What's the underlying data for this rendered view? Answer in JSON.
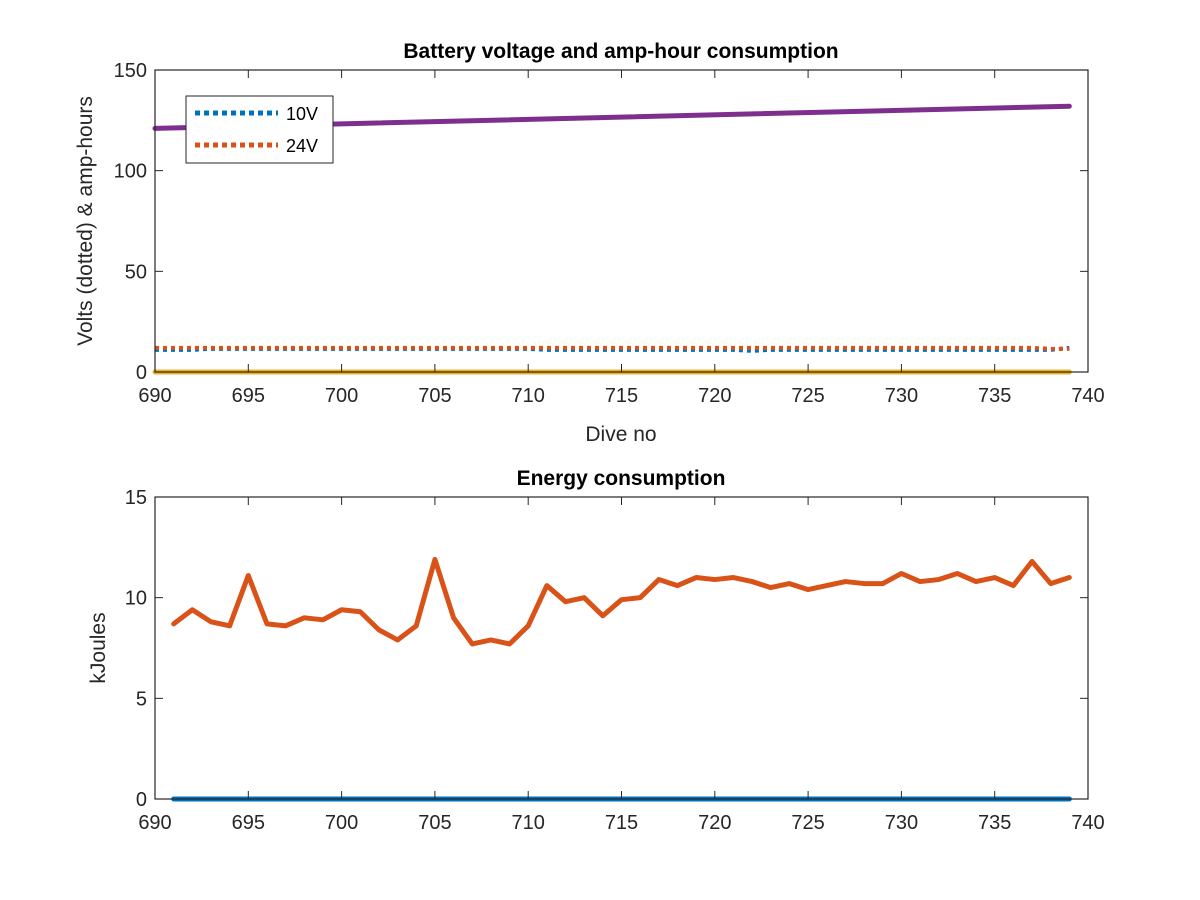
{
  "chart_data": [
    {
      "type": "line",
      "title": "Battery voltage and amp-hour consumption",
      "xlabel": "Dive no",
      "ylabel": "Volts (dotted) & amp-hours",
      "xlim": [
        690,
        740
      ],
      "ylim": [
        0,
        150
      ],
      "xticks": [
        "690",
        "695",
        "700",
        "705",
        "710",
        "715",
        "720",
        "725",
        "730",
        "735",
        "740"
      ],
      "yticks": [
        "0",
        "50",
        "100",
        "150"
      ],
      "legend": {
        "location": "top-left"
      },
      "series": [
        {
          "name": "10V",
          "style": "dotted",
          "color": "#0072BD",
          "x": [
            690,
            691,
            692,
            693,
            694,
            695,
            696,
            697,
            698,
            699,
            700,
            701,
            702,
            703,
            704,
            705,
            706,
            707,
            708,
            709,
            710,
            711,
            712,
            713,
            714,
            715,
            716,
            717,
            718,
            719,
            720,
            721,
            722,
            723,
            724,
            725,
            726,
            727,
            728,
            729,
            730,
            731,
            732,
            733,
            734,
            735,
            736,
            737,
            738,
            739
          ],
          "y": [
            11,
            11,
            11,
            11.5,
            11.5,
            11.5,
            11.5,
            11.5,
            11.5,
            11.5,
            11.5,
            11.5,
            11.5,
            11.5,
            11.5,
            11.5,
            11.5,
            11.5,
            11.5,
            11.5,
            11.5,
            11,
            11,
            11,
            11,
            11,
            11,
            11,
            11,
            11,
            11,
            11,
            10.5,
            11,
            11,
            11,
            11,
            11,
            11,
            11,
            11,
            11,
            11,
            11,
            11,
            11,
            11,
            11,
            11,
            12
          ]
        },
        {
          "name": "24V",
          "style": "dotted",
          "color": "#D95319",
          "x": [
            690,
            691,
            692,
            693,
            694,
            695,
            696,
            697,
            698,
            699,
            700,
            701,
            702,
            703,
            704,
            705,
            706,
            707,
            708,
            709,
            710,
            711,
            712,
            713,
            714,
            715,
            716,
            717,
            718,
            719,
            720,
            721,
            722,
            723,
            724,
            725,
            726,
            727,
            728,
            729,
            730,
            731,
            732,
            733,
            734,
            735,
            736,
            737,
            738,
            739
          ],
          "y": [
            12,
            12,
            12,
            12,
            12,
            12,
            12,
            12,
            12,
            12,
            12,
            12,
            12,
            12,
            12,
            12,
            12,
            12,
            12,
            12,
            12,
            12,
            12,
            12,
            12,
            12,
            12,
            12,
            12,
            12,
            12,
            12,
            12,
            12,
            12,
            12,
            12,
            12,
            12,
            12,
            12,
            12,
            12,
            12,
            12,
            12,
            12,
            12,
            11.5,
            11.5
          ]
        },
        {
          "style": "solid",
          "color": "#EDB120",
          "x": [
            690,
            739
          ],
          "y": [
            0,
            0
          ]
        },
        {
          "style": "solid",
          "color": "#7E2F8E",
          "x": [
            690,
            739
          ],
          "y": [
            121,
            132
          ]
        }
      ]
    },
    {
      "type": "line",
      "title": "Energy consumption",
      "xlabel": "",
      "ylabel": "kJoules",
      "xlim": [
        690,
        740
      ],
      "ylim": [
        0,
        15
      ],
      "xticks": [
        "690",
        "695",
        "700",
        "705",
        "710",
        "715",
        "720",
        "725",
        "730",
        "735",
        "740"
      ],
      "yticks": [
        "0",
        "5",
        "10",
        "15"
      ],
      "series": [
        {
          "style": "solid",
          "color": "#D95319",
          "x": [
            691,
            692,
            693,
            694,
            695,
            696,
            697,
            698,
            699,
            700,
            701,
            702,
            703,
            704,
            705,
            706,
            707,
            708,
            709,
            710,
            711,
            712,
            713,
            714,
            715,
            716,
            717,
            718,
            719,
            720,
            721,
            722,
            723,
            724,
            725,
            726,
            727,
            728,
            729,
            730,
            731,
            732,
            733,
            734,
            735,
            736,
            737,
            738,
            739
          ],
          "y": [
            8.7,
            9.4,
            8.8,
            8.6,
            11.1,
            8.7,
            8.6,
            9.0,
            8.9,
            9.4,
            9.3,
            8.4,
            7.9,
            8.6,
            11.9,
            9.0,
            7.7,
            7.9,
            7.7,
            8.6,
            10.6,
            9.8,
            10.0,
            9.1,
            9.9,
            10.0,
            10.9,
            10.6,
            11.0,
            10.9,
            11.0,
            10.8,
            10.5,
            10.7,
            10.4,
            10.6,
            10.8,
            10.7,
            10.7,
            11.2,
            10.8,
            10.9,
            11.2,
            10.8,
            11.0,
            10.6,
            11.8,
            10.7,
            11.0
          ]
        },
        {
          "style": "solid",
          "color": "#0072BD",
          "x": [
            691,
            739
          ],
          "y": [
            0,
            0
          ]
        }
      ]
    }
  ]
}
